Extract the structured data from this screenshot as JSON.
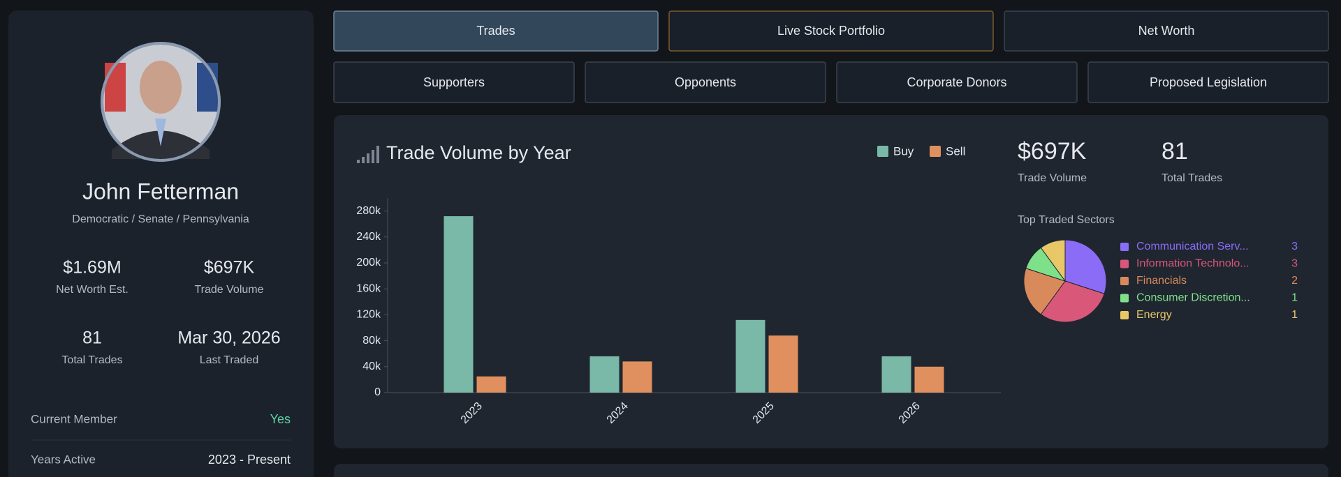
{
  "profile": {
    "name": "John Fetterman",
    "subtitle": "Democratic / Senate / Pennsylvania",
    "stats": [
      {
        "value": "$1.69M",
        "label": "Net Worth Est."
      },
      {
        "value": "$697K",
        "label": "Trade Volume"
      },
      {
        "value": "81",
        "label": "Total Trades"
      },
      {
        "value": "Mar 30, 2026",
        "label": "Last Traded"
      }
    ],
    "details": [
      {
        "label": "Current Member",
        "value": "Yes"
      },
      {
        "label": "Years Active",
        "value": "2023 - Present"
      }
    ]
  },
  "tabs": {
    "row1": [
      "Trades",
      "Live Stock Portfolio",
      "Net Worth"
    ],
    "row2": [
      "Supporters",
      "Opponents",
      "Corporate Donors",
      "Proposed Legislation"
    ]
  },
  "summary": [
    {
      "value": "$697K",
      "label": "Trade Volume"
    },
    {
      "value": "81",
      "label": "Total Trades"
    }
  ],
  "chart_data": [
    {
      "type": "bar",
      "title": "Trade Volume by Year",
      "categories": [
        "2023",
        "2024",
        "2025",
        "2026"
      ],
      "series": [
        {
          "name": "Buy",
          "color": "#7ab8a8",
          "values": [
            272000,
            56000,
            112000,
            56000
          ]
        },
        {
          "name": "Sell",
          "color": "#e0905e",
          "values": [
            25000,
            48000,
            88000,
            40000
          ]
        }
      ],
      "ylim": [
        0,
        300000
      ],
      "yticks": [
        0,
        {
          "value": 40000,
          "label": "40k"
        },
        {
          "value": 80000,
          "label": "80k"
        },
        {
          "value": 120000,
          "label": "120k"
        },
        {
          "value": 160000,
          "label": "160k"
        },
        {
          "value": 200000,
          "label": "200k"
        },
        {
          "value": 240000,
          "label": "240k"
        },
        {
          "value": 280000,
          "label": "280k"
        }
      ],
      "grid": false
    },
    {
      "type": "pie",
      "title": "Top Traded Sectors",
      "categories": [
        "Communication Serv...",
        "Information Technolo...",
        "Financials",
        "Consumer Discretion...",
        "Energy"
      ],
      "values": [
        3,
        3,
        2,
        1,
        1
      ],
      "colors": [
        "#8b6cf6",
        "#d9587a",
        "#d98a5b",
        "#7fe08a",
        "#e8c766"
      ]
    }
  ]
}
